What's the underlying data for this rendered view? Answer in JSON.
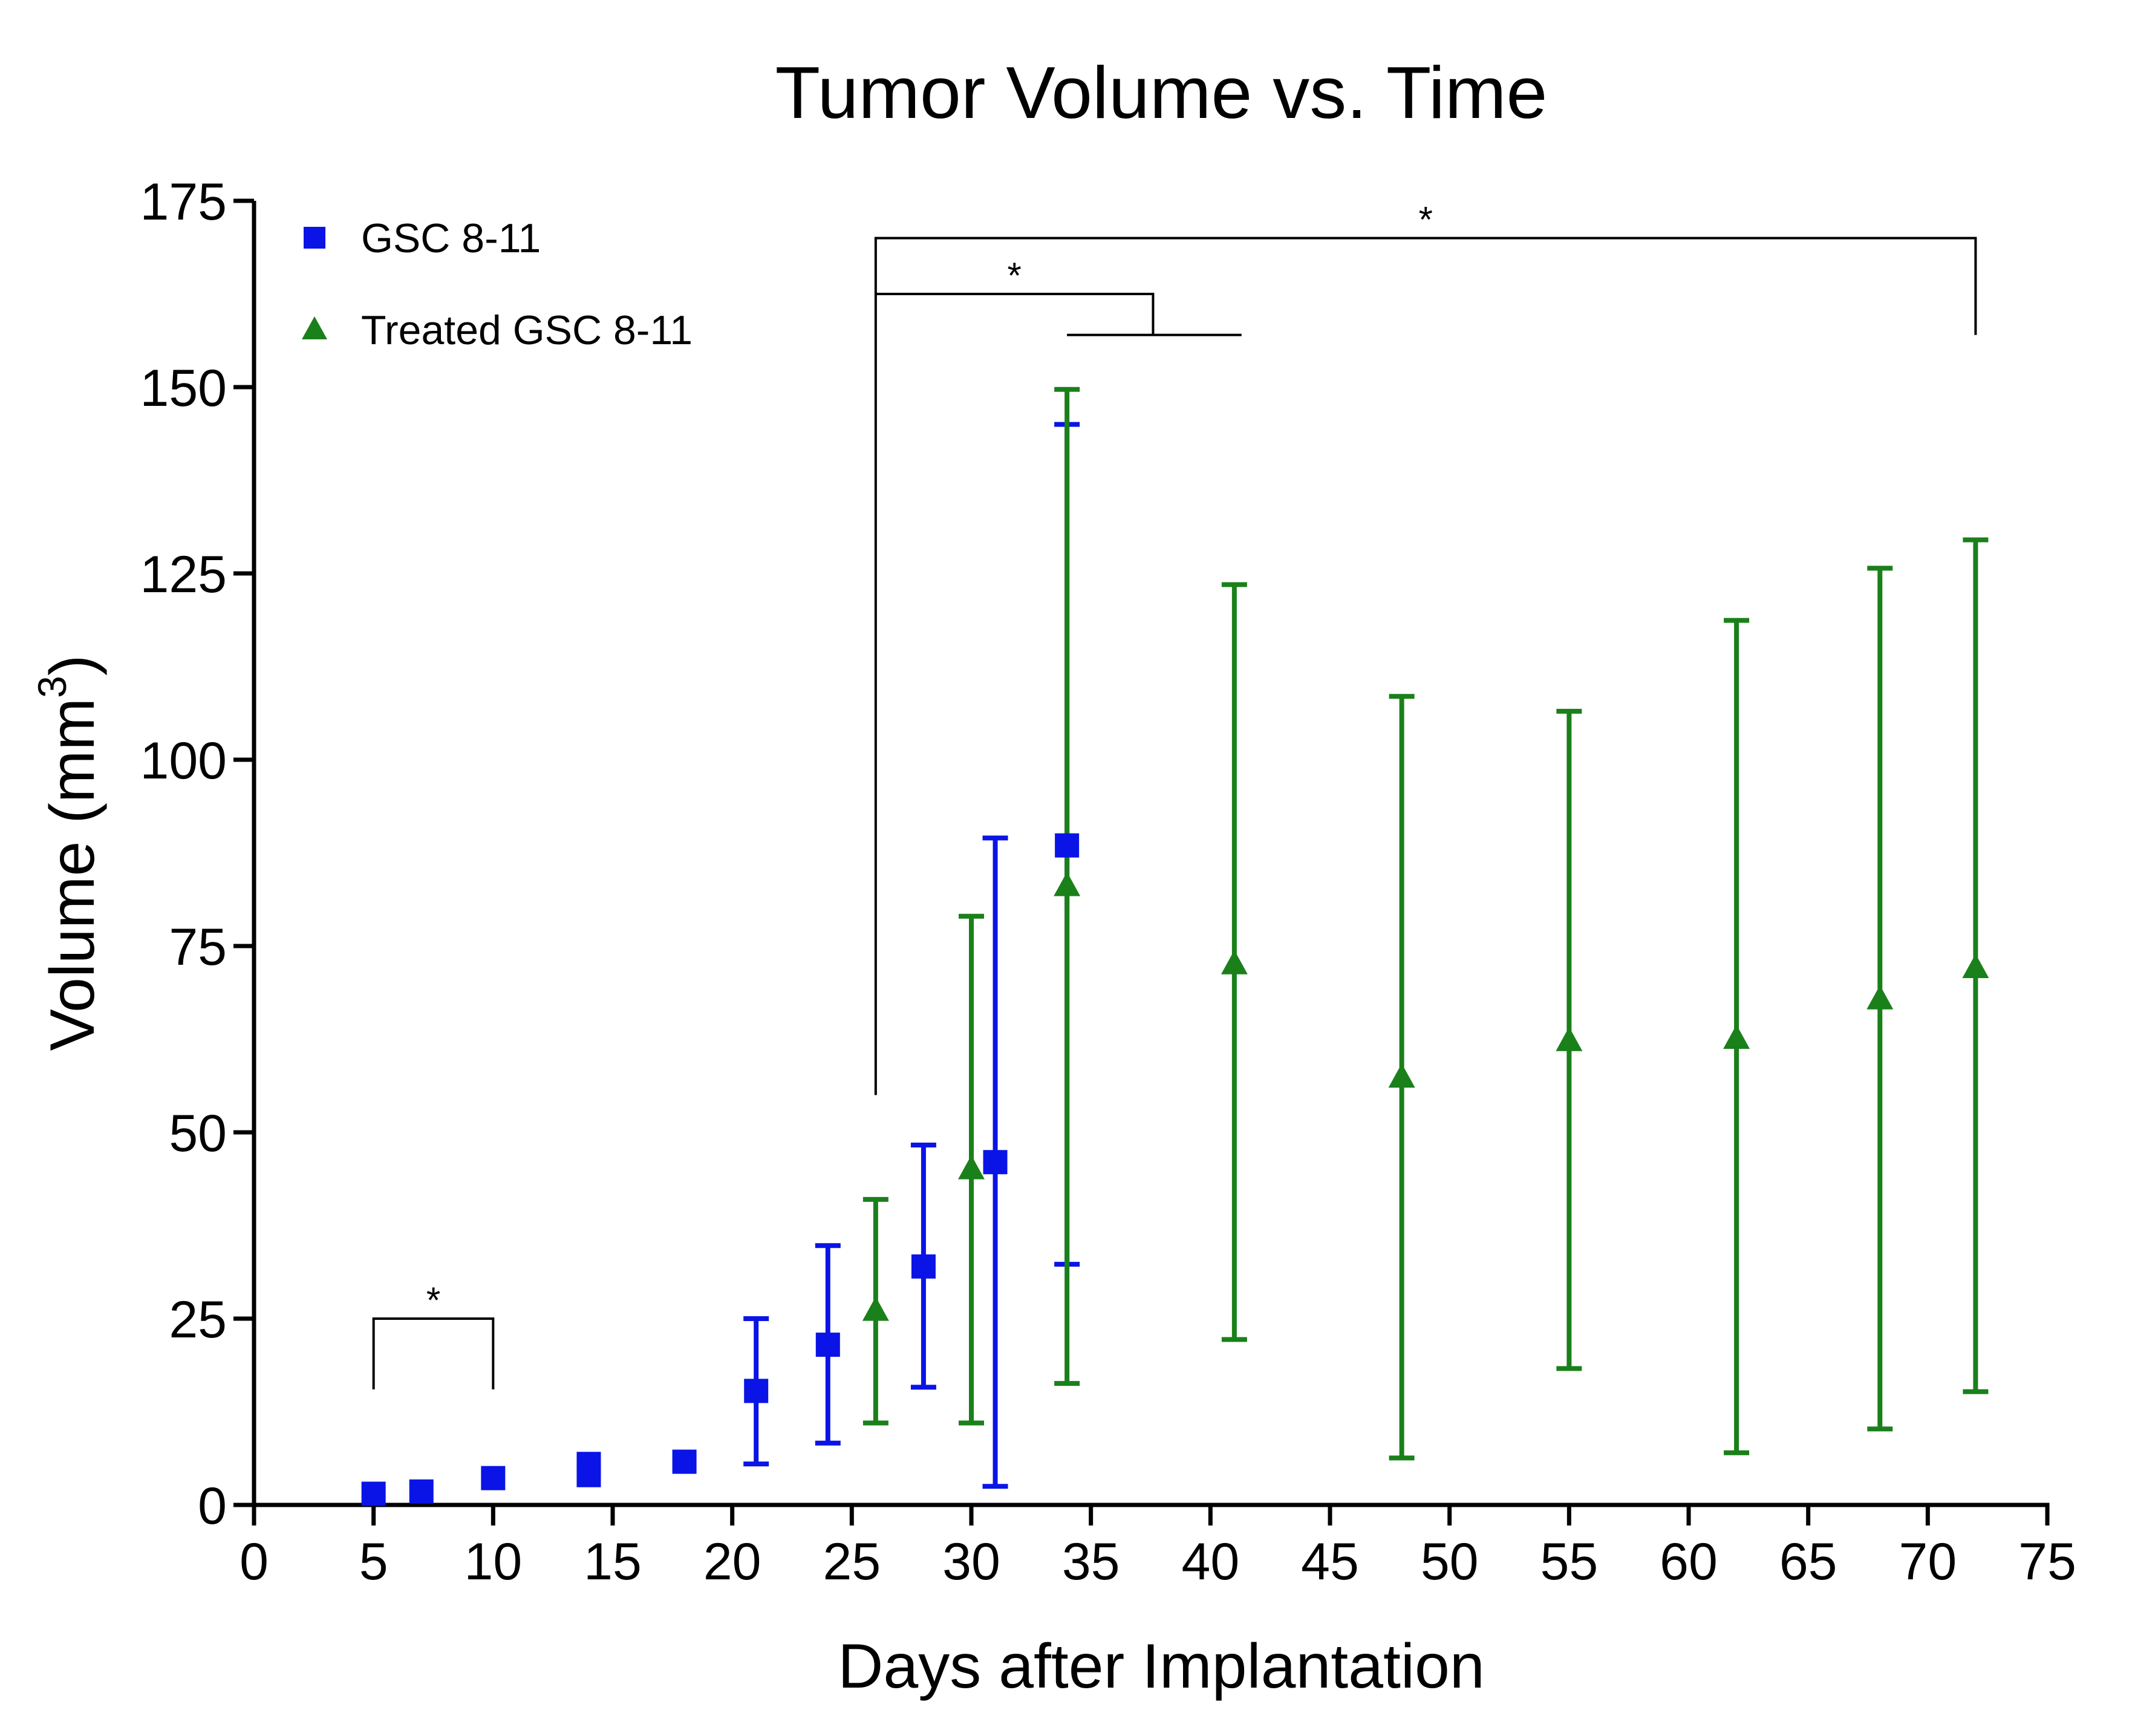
{
  "chart_data": {
    "type": "scatter",
    "title": "Tumor Volume vs. Time",
    "xlabel": "Days after Implantation",
    "ylabel_main": "Volume (mm",
    "ylabel_sup": "3",
    "ylabel_close": ")",
    "xlim": [
      0,
      75
    ],
    "ylim": [
      0,
      175
    ],
    "xticks": [
      0,
      5,
      10,
      15,
      20,
      25,
      30,
      35,
      40,
      45,
      50,
      55,
      60,
      65,
      70,
      75
    ],
    "yticks": [
      0,
      25,
      50,
      75,
      100,
      125,
      150,
      175
    ],
    "grid": false,
    "legend_position": "top-left",
    "series": [
      {
        "name": "GSC 8-11",
        "marker": "square",
        "color": "#0a14e6",
        "points": [
          {
            "x": 5,
            "y": 1.5
          },
          {
            "x": 7,
            "y": 1.8
          },
          {
            "x": 10,
            "y": 3.6
          },
          {
            "x": 14,
            "y": 4.0
          },
          {
            "x": 14,
            "y": 5.5
          },
          {
            "x": 18,
            "y": 5.8
          },
          {
            "x": 21,
            "y": 15.3,
            "low": 5.5,
            "high": 25.0
          },
          {
            "x": 24,
            "y": 21.5,
            "low": 8.3,
            "high": 34.8
          },
          {
            "x": 28,
            "y": 32.0,
            "low": 15.8,
            "high": 48.3
          },
          {
            "x": 31,
            "y": 46.0,
            "low": 2.5,
            "high": 89.5
          },
          {
            "x": 34,
            "y": 88.5,
            "low": 32.3,
            "high": 145.0
          }
        ]
      },
      {
        "name": "Treated GSC 8-11",
        "marker": "triangle",
        "color": "#1a801a",
        "points": [
          {
            "x": 26,
            "y": 26.0,
            "low": 11.0,
            "high": 41.0
          },
          {
            "x": 30,
            "y": 45.0,
            "low": 11.0,
            "high": 79.0
          },
          {
            "x": 34,
            "y": 83.0,
            "low": 16.3,
            "high": 149.7
          },
          {
            "x": 41,
            "y": 72.5,
            "low": 22.2,
            "high": 123.5
          },
          {
            "x": 48,
            "y": 57.3,
            "low": 6.3,
            "high": 108.5
          },
          {
            "x": 55,
            "y": 62.2,
            "low": 18.3,
            "high": 106.5
          },
          {
            "x": 62,
            "y": 62.5,
            "low": 7.0,
            "high": 118.7
          },
          {
            "x": 68,
            "y": 67.8,
            "low": 10.2,
            "high": 125.7
          },
          {
            "x": 72,
            "y": 72.0,
            "low": 15.2,
            "high": 129.5
          }
        ]
      }
    ],
    "annotations": [
      {
        "label": "*",
        "type": "bracket",
        "x1": 5,
        "x2": 10,
        "y_top": 25,
        "y1_bottom": 15.5,
        "y2_bottom": 15.5
      },
      {
        "label": "*",
        "type": "bracket",
        "x1": 26,
        "x2": 72,
        "y_top": 170,
        "y1_bottom": 55,
        "y2_bottom": 157
      },
      {
        "label": "*",
        "type": "nested-bracket",
        "x1": 26,
        "x_mid": 37.6,
        "sub_x1": 34,
        "sub_x2": 41.3,
        "y_top": 162.5,
        "y_sub": 157
      }
    ]
  }
}
